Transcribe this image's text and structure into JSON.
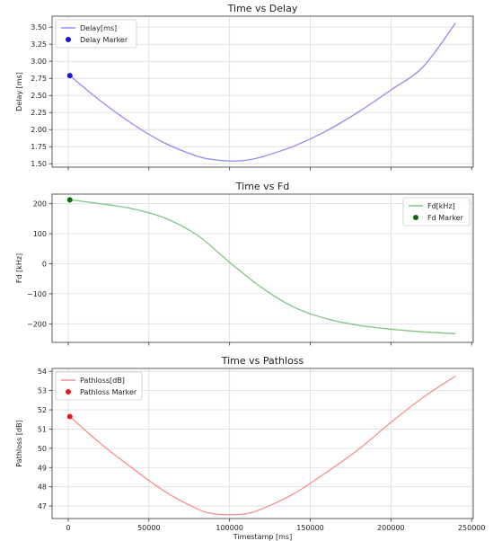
{
  "chart_data": [
    {
      "type": "line",
      "title": "Time vs Delay",
      "xlabel": "",
      "ylabel": "Delay [ms]",
      "xlim": [
        -10000,
        251000
      ],
      "ylim": [
        1.45,
        3.66
      ],
      "xticks": [
        0,
        50000,
        100000,
        150000,
        200000,
        250000
      ],
      "xtick_labels_shown": false,
      "yticks": [
        1.5,
        1.75,
        2.0,
        2.25,
        2.5,
        2.75,
        3.0,
        3.25,
        3.5
      ],
      "ytick_labels": [
        "1.50",
        "1.75",
        "2.00",
        "2.25",
        "2.50",
        "2.75",
        "3.00",
        "3.25",
        "3.50"
      ],
      "grid": true,
      "legend_position": "top-left",
      "series": [
        {
          "name": "Delay[ms]",
          "color": "#8c8cf2",
          "x": [
            1000,
            20000,
            40000,
            60000,
            80000,
            90000,
            100000,
            110000,
            120000,
            140000,
            160000,
            180000,
            200000,
            220000,
            240000
          ],
          "y": [
            2.79,
            2.42,
            2.08,
            1.8,
            1.61,
            1.56,
            1.54,
            1.55,
            1.6,
            1.76,
            1.98,
            2.26,
            2.58,
            2.92,
            3.56
          ]
        }
      ],
      "marker": {
        "name": "Delay Marker",
        "color": "#1515d6",
        "x": 1000,
        "y": 2.79
      }
    },
    {
      "type": "line",
      "title": "Time vs Fd",
      "xlabel": "",
      "ylabel": "Fd [kHz]",
      "xlim": [
        -10000,
        251000
      ],
      "ylim": [
        -262,
        232
      ],
      "xticks": [
        0,
        50000,
        100000,
        150000,
        200000,
        250000
      ],
      "xtick_labels_shown": false,
      "yticks": [
        -200,
        -100,
        0,
        100,
        200
      ],
      "ytick_labels": [
        "−200",
        "−100",
        "0",
        "100",
        "200"
      ],
      "grid": true,
      "legend_position": "top-right",
      "series": [
        {
          "name": "Fd[kHz]",
          "color": "#82c482",
          "x": [
            1000,
            20000,
            40000,
            60000,
            80000,
            100000,
            120000,
            140000,
            160000,
            180000,
            200000,
            220000,
            240000
          ],
          "y": [
            213,
            200,
            183,
            152,
            95,
            5,
            -80,
            -145,
            -183,
            -205,
            -218,
            -227,
            -233
          ]
        }
      ],
      "marker": {
        "name": "Fd Marker",
        "color": "#0b6b0b",
        "x": 1000,
        "y": 213
      }
    },
    {
      "type": "line",
      "title": "Time vs Pathloss",
      "xlabel": "Timestamp [ms]",
      "ylabel": "Pathloss [dB]",
      "xlim": [
        -10000,
        251000
      ],
      "ylim": [
        46.35,
        54.15
      ],
      "xticks": [
        0,
        50000,
        100000,
        150000,
        200000,
        250000
      ],
      "xtick_labels_shown": true,
      "xtick_labels": [
        "0",
        "50000",
        "100000",
        "150000",
        "200000",
        "250000"
      ],
      "yticks": [
        47,
        48,
        49,
        50,
        51,
        52,
        53,
        54
      ],
      "ytick_labels": [
        "47",
        "48",
        "49",
        "50",
        "51",
        "52",
        "53",
        "54"
      ],
      "grid": true,
      "legend_position": "top-left",
      "series": [
        {
          "name": "Pathloss[dB]",
          "color": "#f5908c",
          "x": [
            1000,
            20000,
            40000,
            60000,
            80000,
            90000,
            100000,
            110000,
            120000,
            140000,
            160000,
            180000,
            200000,
            220000,
            240000
          ],
          "y": [
            51.65,
            50.25,
            48.95,
            47.75,
            46.85,
            46.6,
            46.55,
            46.6,
            46.85,
            47.65,
            48.75,
            49.95,
            51.35,
            52.65,
            53.75
          ]
        }
      ],
      "marker": {
        "name": "Pathloss Marker",
        "color": "#e8181a",
        "x": 1000,
        "y": 51.65
      }
    }
  ]
}
